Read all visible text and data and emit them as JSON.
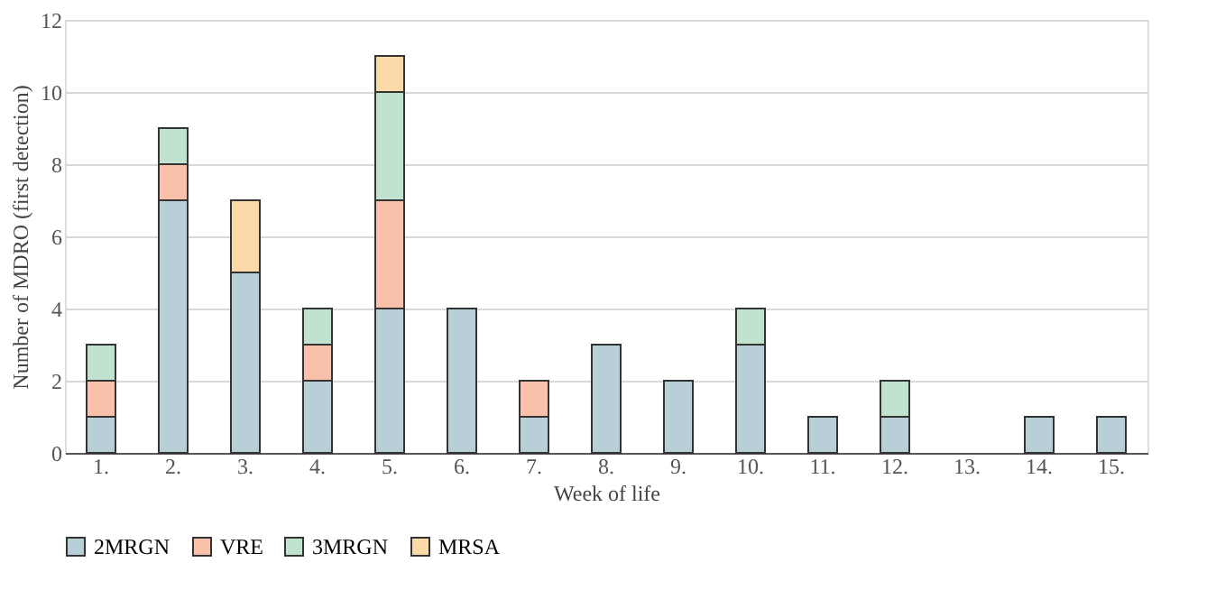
{
  "chart_data": {
    "type": "bar",
    "stacked": true,
    "xlabel": "Week of life",
    "ylabel": "Number of  MDRO (first detection)",
    "categories": [
      "1.",
      "2.",
      "3.",
      "4.",
      "5.",
      "6.",
      "7.",
      "8.",
      "9.",
      "10.",
      "11.",
      "12.",
      "13.",
      "14.",
      "15."
    ],
    "series": [
      {
        "name": "2MRGN",
        "color": "#b9cfd8",
        "values": [
          1,
          7,
          5,
          2,
          4,
          4,
          1,
          3,
          2,
          3,
          1,
          1,
          0,
          1,
          1
        ]
      },
      {
        "name": "VRE",
        "color": "#f9c0aa",
        "values": [
          1,
          1,
          0,
          1,
          3,
          0,
          1,
          0,
          0,
          0,
          0,
          0,
          0,
          0,
          0
        ]
      },
      {
        "name": "3MRGN",
        "color": "#c2e2d0",
        "values": [
          1,
          1,
          0,
          1,
          3,
          0,
          0,
          0,
          0,
          1,
          0,
          1,
          0,
          0,
          0
        ]
      },
      {
        "name": "MRSA",
        "color": "#fbd9a9",
        "values": [
          0,
          0,
          2,
          0,
          1,
          0,
          0,
          0,
          0,
          0,
          0,
          0,
          0,
          0,
          0
        ]
      }
    ],
    "ylim": [
      0,
      12
    ],
    "yticks": [
      0,
      2,
      4,
      6,
      8,
      10,
      12
    ],
    "grid": "y",
    "legend": "bottom"
  }
}
